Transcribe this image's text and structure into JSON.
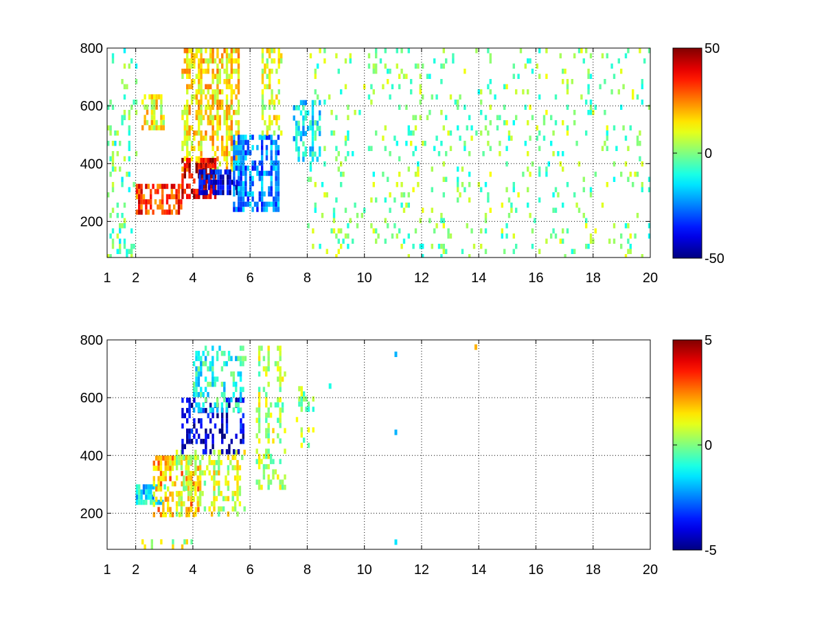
{
  "chart_data": [
    {
      "type": "heatmap",
      "title": "",
      "xlabel": "",
      "ylabel": "",
      "xlim": [
        1,
        20
      ],
      "ylim": [
        75,
        800
      ],
      "x_scale": "linear",
      "grid": true,
      "x_ticks": [
        1,
        2,
        4,
        6,
        8,
        10,
        12,
        14,
        16,
        18,
        20
      ],
      "x_tick_labels": [
        "1",
        "2",
        "4",
        "6",
        "8",
        "10",
        "12",
        "14",
        "16",
        "18",
        "20"
      ],
      "y_ticks": [
        200,
        400,
        600,
        800
      ],
      "y_tick_labels": [
        "200",
        "400",
        "600",
        "800"
      ],
      "colormap": "jet",
      "clim": [
        -50,
        50
      ],
      "colorbar_ticks": [
        -50,
        0,
        50
      ],
      "colorbar_tick_labels": [
        "-50",
        "0",
        "50"
      ],
      "regions": [
        {
          "x": [
            1.0,
            2.0
          ],
          "y": [
            80,
            800
          ],
          "value": -3,
          "density": 0.22
        },
        {
          "x": [
            2.0,
            3.6
          ],
          "y": [
            240,
            330
          ],
          "value": 32,
          "density": 0.9
        },
        {
          "x": [
            2.2,
            3.0
          ],
          "y": [
            520,
            640
          ],
          "value": 12,
          "density": 0.7
        },
        {
          "x": [
            3.6,
            5.6
          ],
          "y": [
            380,
            800
          ],
          "value": 15,
          "density": 0.7
        },
        {
          "x": [
            3.6,
            4.8
          ],
          "y": [
            290,
            420
          ],
          "value": 42,
          "density": 0.9
        },
        {
          "x": [
            4.2,
            5.6
          ],
          "y": [
            300,
            380
          ],
          "value": -40,
          "density": 0.85
        },
        {
          "x": [
            5.4,
            7.0
          ],
          "y": [
            250,
            500
          ],
          "value": -25,
          "density": 0.75
        },
        {
          "x": [
            6.4,
            7.1
          ],
          "y": [
            500,
            800
          ],
          "value": 10,
          "density": 0.55
        },
        {
          "x": [
            7.5,
            8.4
          ],
          "y": [
            420,
            620
          ],
          "value": -15,
          "density": 0.6
        },
        {
          "x": [
            8.0,
            20.0
          ],
          "y": [
            80,
            800
          ],
          "value": 0,
          "density": 0.12
        }
      ]
    },
    {
      "type": "heatmap",
      "title": "",
      "xlabel": "",
      "ylabel": "",
      "xlim": [
        1,
        20
      ],
      "ylim": [
        75,
        800
      ],
      "x_scale": "linear",
      "grid": true,
      "x_ticks": [
        1,
        2,
        4,
        6,
        8,
        10,
        12,
        14,
        16,
        18,
        20
      ],
      "x_tick_labels": [
        "1",
        "2",
        "4",
        "6",
        "8",
        "10",
        "12",
        "14",
        "16",
        "18",
        "20"
      ],
      "y_ticks": [
        200,
        400,
        600,
        800
      ],
      "y_tick_labels": [
        "200",
        "400",
        "600",
        "800"
      ],
      "colormap": "jet",
      "clim": [
        -5,
        5
      ],
      "colorbar_ticks": [
        -5,
        0,
        5
      ],
      "colorbar_tick_labels": [
        "-5",
        "0",
        "5"
      ],
      "regions": [
        {
          "x": [
            2.0,
            3.0
          ],
          "y": [
            230,
            300
          ],
          "value": -1.5,
          "density": 0.6
        },
        {
          "x": [
            2.6,
            4.2
          ],
          "y": [
            200,
            400
          ],
          "value": 2.0,
          "density": 0.55
        },
        {
          "x": [
            3.4,
            5.8
          ],
          "y": [
            200,
            420
          ],
          "value": 0.8,
          "density": 0.6
        },
        {
          "x": [
            3.6,
            5.8
          ],
          "y": [
            420,
            600
          ],
          "value": -4.2,
          "density": 0.55
        },
        {
          "x": [
            4.0,
            5.8
          ],
          "y": [
            560,
            780
          ],
          "value": -1.0,
          "density": 0.45
        },
        {
          "x": [
            6.2,
            7.2
          ],
          "y": [
            290,
            780
          ],
          "value": 0.5,
          "density": 0.5
        },
        {
          "x": [
            7.6,
            8.2
          ],
          "y": [
            430,
            640
          ],
          "value": 0.2,
          "density": 0.4
        },
        {
          "x": [
            2.2,
            4.0
          ],
          "y": [
            80,
            110
          ],
          "value": 0.8,
          "density": 0.4
        }
      ],
      "isolated_points": [
        {
          "x": 11.1,
          "y": 100,
          "value": -1.5
        },
        {
          "x": 11.1,
          "y": 480,
          "value": -2.0
        },
        {
          "x": 11.1,
          "y": 750,
          "value": -2.0
        },
        {
          "x": 13.9,
          "y": 775,
          "value": 2.0
        },
        {
          "x": 8.8,
          "y": 640,
          "value": -1.0
        }
      ]
    }
  ]
}
